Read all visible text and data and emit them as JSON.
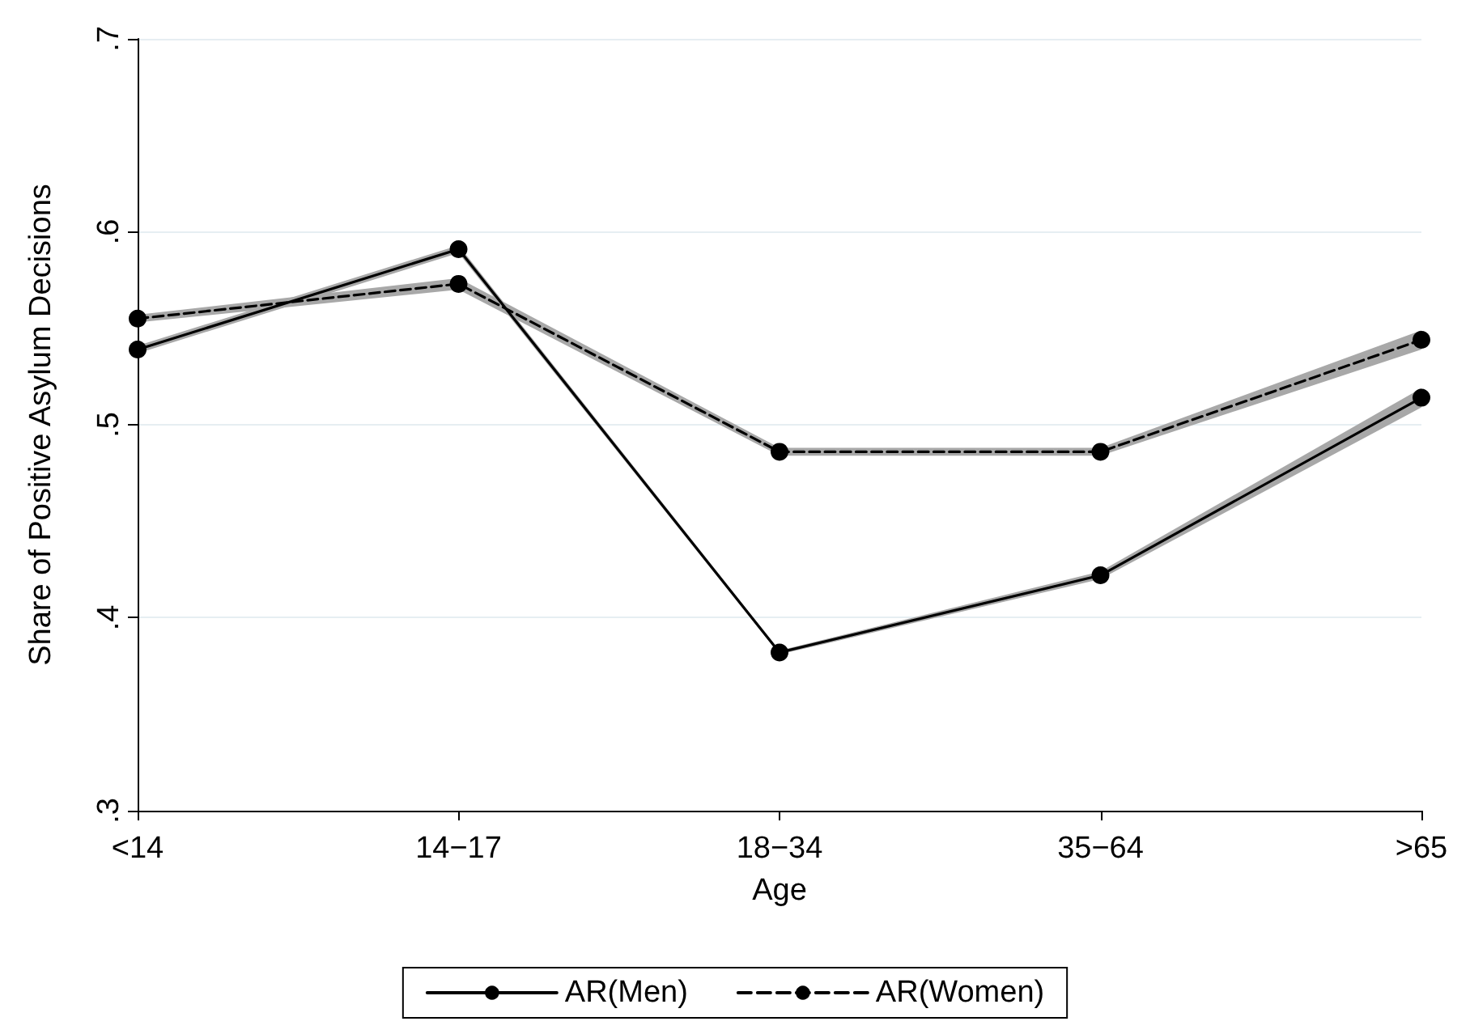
{
  "chart_data": {
    "type": "line",
    "xlabel": "Age",
    "ylabel": "Share of Positive Asylum Decisions",
    "categories": [
      "<14",
      "14−17",
      "18−34",
      "35−64",
      ">65"
    ],
    "series": [
      {
        "name": "AR(Men)",
        "color": "#000000",
        "line_style": "solid",
        "values": [
          0.539,
          0.591,
          0.382,
          0.422,
          0.514
        ],
        "lower": [
          0.537,
          0.589,
          0.381,
          0.42,
          0.509
        ],
        "upper": [
          0.541,
          0.593,
          0.383,
          0.424,
          0.519
        ]
      },
      {
        "name": "AR(Women)",
        "color": "#000000",
        "line_style": "dashed",
        "values": [
          0.555,
          0.573,
          0.486,
          0.486,
          0.544
        ],
        "lower": [
          0.553,
          0.57,
          0.484,
          0.484,
          0.539
        ],
        "upper": [
          0.557,
          0.576,
          0.488,
          0.488,
          0.549
        ]
      }
    ],
    "ylim": [
      0.3,
      0.7
    ],
    "yticks": [
      {
        "value": 0.3,
        "label": ".3"
      },
      {
        "value": 0.4,
        "label": ".4"
      },
      {
        "value": 0.5,
        "label": ".5"
      },
      {
        "value": 0.6,
        "label": ".6"
      },
      {
        "value": 0.7,
        "label": ".7"
      }
    ],
    "grid": "y",
    "legend": "bottom",
    "marker": "circle"
  }
}
